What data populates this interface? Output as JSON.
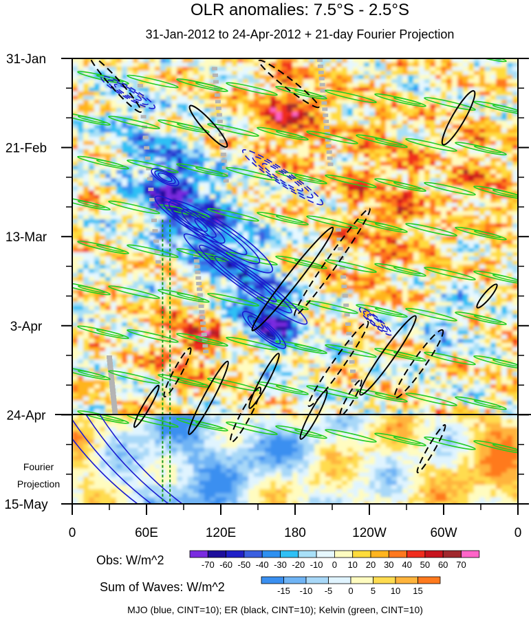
{
  "chart_data": {
    "type": "heatmap",
    "title": "OLR anomalies: 7.5°S - 2.5°S",
    "subtitle": "31-Jan-2012 to 24-Apr-2012 + 21-day Fourier Projection",
    "x_ticks": [
      "0",
      "60E",
      "120E",
      "180",
      "120W",
      "60W",
      "0"
    ],
    "x_range_deg_east": [
      0,
      360
    ],
    "y_ticks": [
      "31-Jan",
      "21-Feb",
      "13-Mar",
      "3-Apr",
      "24-Apr",
      "15-May"
    ],
    "y_range_days": [
      0,
      105
    ],
    "projection_start_day": 84,
    "projection_label": [
      "Fourier",
      "Projection"
    ],
    "obs_colorbar": {
      "label": "Obs: W/m^2",
      "levels": [
        "-70",
        "-60",
        "-50",
        "-40",
        "-30",
        "-20",
        "-10",
        "0",
        "10",
        "20",
        "30",
        "40",
        "50",
        "60",
        "70"
      ],
      "colors": [
        "#7a2be0",
        "#1e0f9c",
        "#2020c8",
        "#3a5fe0",
        "#2e90f0",
        "#2fc0f5",
        "#a8e0f8",
        "#e6f8ff",
        "#fffcc0",
        "#ffdc3c",
        "#ffb41e",
        "#ff781e",
        "#f02d1e",
        "#c8141e",
        "#a0282d",
        "#ff64c8"
      ]
    },
    "waves_colorbar": {
      "label": "Sum of Waves: W/m^2",
      "levels": [
        "-15",
        "-10",
        "-5",
        "0",
        "5",
        "10",
        "15"
      ],
      "colors": [
        "#3a8ff0",
        "#6fb4f5",
        "#a8d8f8",
        "#e0f4ff",
        "#fffcc0",
        "#ffdc50",
        "#ffb43c",
        "#ff7a1e"
      ]
    },
    "footer": "MJO (blue, CINT=10); ER (black, CINT=10); Kelvin (green, CINT=10)",
    "contour_series": [
      {
        "name": "MJO",
        "color": "#1a1ad0",
        "cint": 10
      },
      {
        "name": "ER",
        "color": "#000000",
        "cint": 10
      },
      {
        "name": "Kelvin",
        "color": "#22cc22",
        "cint": 10
      }
    ],
    "mjo_features": [
      {
        "lon": 75,
        "day": 28,
        "rx": 22,
        "ry": 8,
        "rot": 28,
        "sign": -1
      },
      {
        "lon": 95,
        "day": 38,
        "rx": 60,
        "ry": 12,
        "rot": 33,
        "sign": -1
      },
      {
        "lon": 120,
        "day": 42,
        "rx": 90,
        "ry": 18,
        "rot": 34,
        "sign": -1
      },
      {
        "lon": 140,
        "day": 52,
        "rx": 110,
        "ry": 14,
        "rot": 36,
        "sign": -1
      },
      {
        "lon": 155,
        "day": 64,
        "rx": 40,
        "ry": 10,
        "rot": 40,
        "sign": -1
      },
      {
        "lon": 170,
        "day": 28,
        "rx": 70,
        "ry": 10,
        "rot": 34,
        "sign": 1
      },
      {
        "lon": 45,
        "day": 8,
        "rx": 45,
        "ry": 8,
        "rot": 30,
        "sign": 1
      },
      {
        "lon": 245,
        "day": 62,
        "rx": 30,
        "ry": 6,
        "rot": 40,
        "sign": 1
      }
    ],
    "er_features": [
      {
        "lon": 35,
        "day": 6,
        "rx": 55,
        "ry": 7,
        "rot": 48,
        "sign": -1
      },
      {
        "lon": 110,
        "day": 16,
        "rx": 40,
        "ry": 8,
        "rot": 48,
        "sign": 1
      },
      {
        "lon": 175,
        "day": 6,
        "rx": 55,
        "ry": 7,
        "rot": 38,
        "sign": -1
      },
      {
        "lon": 178,
        "day": 52,
        "rx": 95,
        "ry": 9,
        "rot": -52,
        "sign": 1
      },
      {
        "lon": 210,
        "day": 48,
        "rx": 95,
        "ry": 8,
        "rot": -55,
        "sign": -1
      },
      {
        "lon": 215,
        "day": 72,
        "rx": 75,
        "ry": 8,
        "rot": -55,
        "sign": -1
      },
      {
        "lon": 255,
        "day": 70,
        "rx": 70,
        "ry": 9,
        "rot": -55,
        "sign": 1
      },
      {
        "lon": 280,
        "day": 72,
        "rx": 60,
        "ry": 9,
        "rot": -55,
        "sign": -1
      },
      {
        "lon": 312,
        "day": 14,
        "rx": 45,
        "ry": 9,
        "rot": -60,
        "sign": 1
      },
      {
        "lon": 335,
        "day": 56,
        "rx": 22,
        "ry": 5,
        "rot": -50,
        "sign": 1
      },
      {
        "lon": 110,
        "day": 80,
        "rx": 60,
        "ry": 7,
        "rot": -62,
        "sign": 1
      },
      {
        "lon": 85,
        "day": 74,
        "rx": 40,
        "ry": 6,
        "rot": -62,
        "sign": -1
      },
      {
        "lon": 140,
        "day": 84,
        "rx": 45,
        "ry": 7,
        "rot": -62,
        "sign": -1
      },
      {
        "lon": 155,
        "day": 76,
        "rx": 45,
        "ry": 6,
        "rot": -62,
        "sign": 1
      },
      {
        "lon": 195,
        "day": 84,
        "rx": 40,
        "ry": 6,
        "rot": -62,
        "sign": 1
      },
      {
        "lon": 225,
        "day": 80,
        "rx": 30,
        "ry": 5,
        "rot": -60,
        "sign": -1
      },
      {
        "lon": 290,
        "day": 92,
        "rx": 40,
        "ry": 5,
        "rot": -60,
        "sign": -1
      },
      {
        "lon": 60,
        "day": 82,
        "rx": 35,
        "ry": 5,
        "rot": -60,
        "sign": 1
      }
    ],
    "kelvin_bands_start_day": [
      -8,
      4,
      14,
      24,
      34,
      44,
      54,
      64,
      74,
      84
    ],
    "dashed_lines_lon": [
      73,
      79
    ]
  }
}
